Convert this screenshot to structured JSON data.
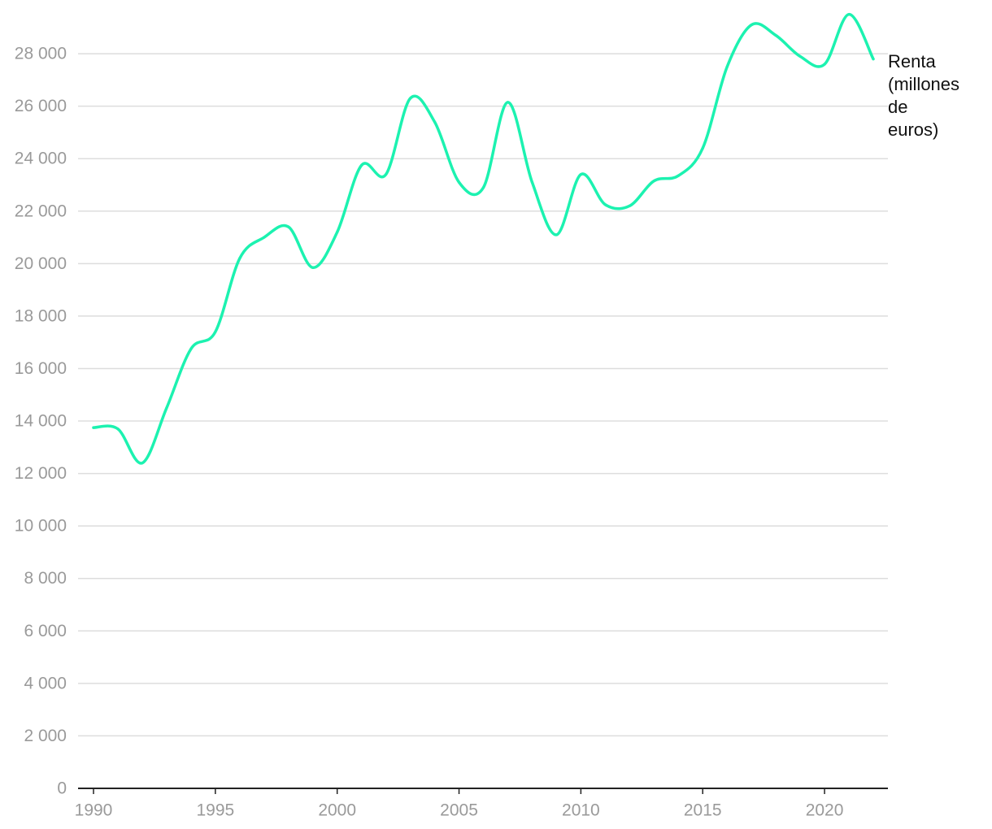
{
  "chart_data": {
    "type": "line",
    "title": "",
    "xlabel": "",
    "ylabel": "",
    "xlim": [
      1990,
      2022
    ],
    "ylim": [
      0,
      29800
    ],
    "grid": true,
    "legend": "none",
    "x_ticks": [
      "1990",
      "1995",
      "2000",
      "2005",
      "2010",
      "2015",
      "2020"
    ],
    "y_ticks": [
      "0",
      "2 000",
      "4 000",
      "6 000",
      "8 000",
      "10 000",
      "12 000",
      "14 000",
      "16 000",
      "18 000",
      "20 000",
      "22 000",
      "24 000",
      "26 000",
      "28 000"
    ],
    "series": [
      {
        "name": "Renta (millones de euros)",
        "label_lines": [
          "Renta",
          "(millones",
          "de",
          "euros)"
        ],
        "color": "#1cf2b0",
        "x": [
          1990,
          1991,
          1992,
          1993,
          1994,
          1995,
          1996,
          1997,
          1998,
          1999,
          2000,
          2001,
          2002,
          2003,
          2004,
          2005,
          2006,
          2007,
          2008,
          2009,
          2010,
          2011,
          2012,
          2013,
          2014,
          2015,
          2016,
          2017,
          2018,
          2019,
          2020,
          2021,
          2022
        ],
        "y": [
          13750,
          13700,
          12400,
          14500,
          16750,
          17400,
          20200,
          21000,
          21400,
          19850,
          21200,
          23750,
          23400,
          26300,
          25400,
          23100,
          22900,
          26150,
          23100,
          21100,
          23400,
          22250,
          22200,
          23150,
          23350,
          24400,
          27500,
          29100,
          28700,
          27900,
          27600,
          29500,
          27800
        ]
      }
    ]
  }
}
